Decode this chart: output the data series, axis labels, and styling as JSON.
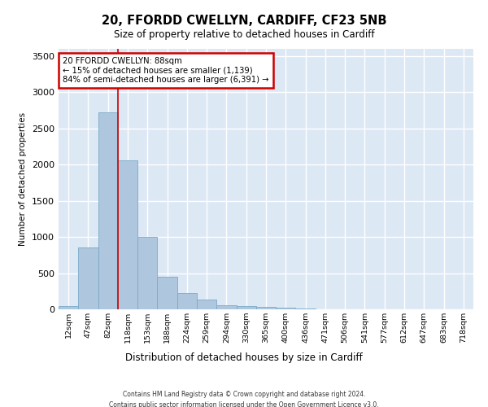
{
  "title1": "20, FFORDD CWELLYN, CARDIFF, CF23 5NB",
  "title2": "Size of property relative to detached houses in Cardiff",
  "xlabel": "Distribution of detached houses by size in Cardiff",
  "ylabel": "Number of detached properties",
  "bin_labels": [
    "12sqm",
    "47sqm",
    "82sqm",
    "118sqm",
    "153sqm",
    "188sqm",
    "224sqm",
    "259sqm",
    "294sqm",
    "330sqm",
    "365sqm",
    "400sqm",
    "436sqm",
    "471sqm",
    "506sqm",
    "541sqm",
    "577sqm",
    "612sqm",
    "647sqm",
    "683sqm",
    "718sqm"
  ],
  "bar_values": [
    50,
    850,
    2720,
    2060,
    1000,
    450,
    220,
    130,
    60,
    50,
    35,
    20,
    12,
    5,
    3,
    2,
    1,
    1,
    0,
    0,
    0
  ],
  "bar_color": "#aec6de",
  "bar_edge_color": "#7aaac8",
  "property_line_x": 2.5,
  "annotation_label": "20 FFORDD CWELLYN: 88sqm",
  "annotation_line1": "← 15% of detached houses are smaller (1,139)",
  "annotation_line2": "84% of semi-detached houses are larger (6,391) →",
  "annotation_box_color": "#ffffff",
  "annotation_box_edge": "#cc0000",
  "vline_color": "#cc0000",
  "ylim": [
    0,
    3600
  ],
  "yticks": [
    0,
    500,
    1000,
    1500,
    2000,
    2500,
    3000,
    3500
  ],
  "bg_color": "#dde8f5",
  "grid_color": "#ffffff",
  "footer1": "Contains HM Land Registry data © Crown copyright and database right 2024.",
  "footer2": "Contains public sector information licensed under the Open Government Licence v3.0."
}
